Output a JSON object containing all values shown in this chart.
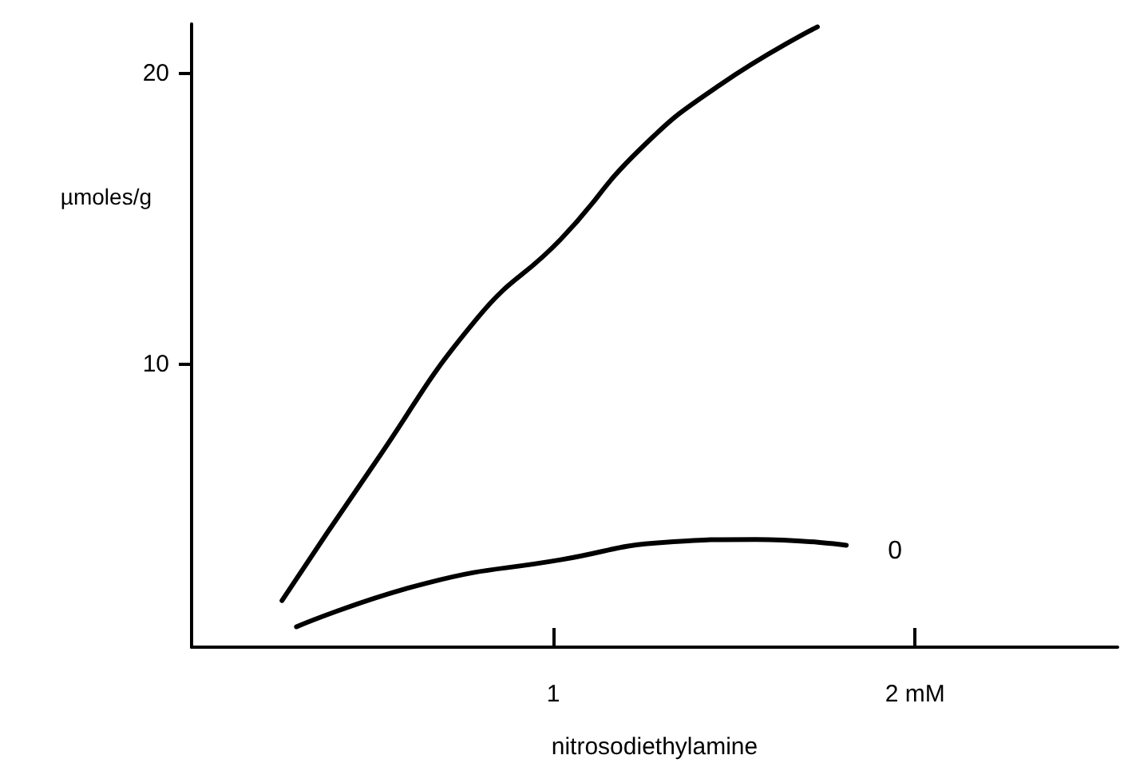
{
  "chart_data": {
    "type": "line",
    "xlabel": "nitrosodiethylamine",
    "ylabel": "µmoles/g",
    "xlim": [
      0,
      2.56
    ],
    "xticks": [
      1,
      {
        "value": 2,
        "label": "2 mM"
      }
    ],
    "ylim": [
      0.3,
      21.7
    ],
    "yticks": [
      10,
      20
    ],
    "series": [
      {
        "color": "#000000",
        "x": [
          0.25,
          0.5,
          0.79,
          1.02,
          1.24,
          1.46,
          1.73
        ],
        "values": [
          1.9,
          6.5,
          11.6,
          14.3,
          17.4,
          19.6,
          21.6
        ]
      },
      {
        "name": "0",
        "color": "#000000",
        "x": [
          0.29,
          0.65,
          1.02,
          1.31,
          1.56,
          1.81
        ],
        "values": [
          1.0,
          2.5,
          3.3,
          3.9,
          4.0,
          3.8
        ]
      }
    ],
    "grid": false,
    "legend": false,
    "marker": "none",
    "line_style": "solid"
  }
}
